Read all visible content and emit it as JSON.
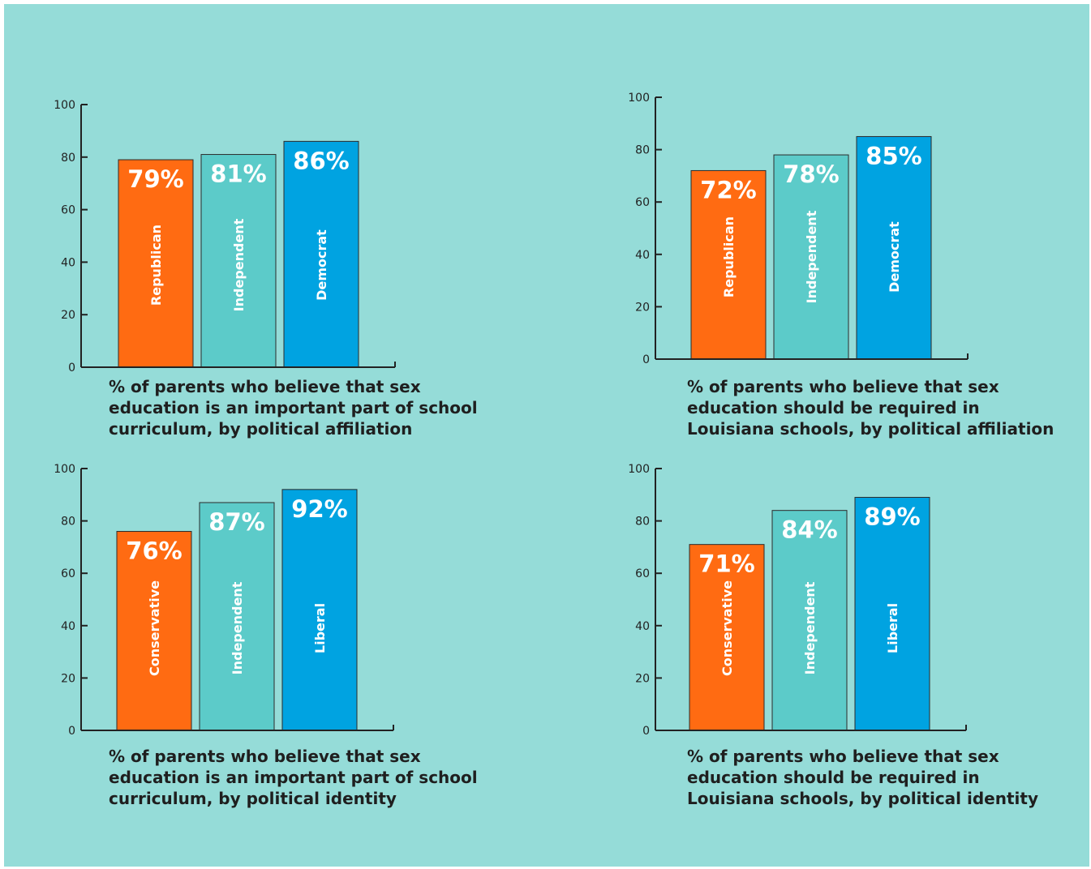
{
  "colors": {
    "background": "#95dcd8",
    "orange": "#ff6b12",
    "teal": "#5ccbc9",
    "blue": "#00a3e1",
    "axis": "#222222"
  },
  "chart_data": [
    {
      "type": "bar",
      "caption": "% of parents who believe that sex education is an important part of school curriculum, by political affiliation",
      "categories": [
        "Republican",
        "Independent",
        "Democrat"
      ],
      "values": [
        79,
        81,
        86
      ],
      "value_labels": [
        "79%",
        "81%",
        "86%"
      ],
      "ylim": [
        0,
        100
      ],
      "yticks": [
        "0",
        "20",
        "40",
        "60",
        "80",
        "100"
      ],
      "grid": false,
      "legend": "none"
    },
    {
      "type": "bar",
      "caption": "% of parents who believe that sex education should be required in Louisiana schools, by political affiliation",
      "categories": [
        "Republican",
        "Independent",
        "Democrat"
      ],
      "values": [
        72,
        78,
        85
      ],
      "value_labels": [
        "72%",
        "78%",
        "85%"
      ],
      "ylim": [
        0,
        100
      ],
      "yticks": [
        "0",
        "20",
        "40",
        "60",
        "80",
        "100"
      ],
      "grid": false,
      "legend": "none"
    },
    {
      "type": "bar",
      "caption": "% of parents who believe that sex education is an important part of school curriculum, by political identity",
      "categories": [
        "Conservative",
        "Independent",
        "Liberal"
      ],
      "values": [
        76,
        87,
        92
      ],
      "value_labels": [
        "76%",
        "87%",
        "92%"
      ],
      "ylim": [
        0,
        100
      ],
      "yticks": [
        "0",
        "20",
        "40",
        "60",
        "80",
        "100"
      ],
      "grid": false,
      "legend": "none"
    },
    {
      "type": "bar",
      "caption": "% of parents who believe that sex education should be required in Louisiana schools, by political identity",
      "categories": [
        "Conservative",
        "Independent",
        "Liberal"
      ],
      "values": [
        71,
        84,
        89
      ],
      "value_labels": [
        "71%",
        "84%",
        "89%"
      ],
      "ylim": [
        0,
        100
      ],
      "yticks": [
        "0",
        "20",
        "40",
        "60",
        "80",
        "100"
      ],
      "grid": false,
      "legend": "none"
    }
  ]
}
